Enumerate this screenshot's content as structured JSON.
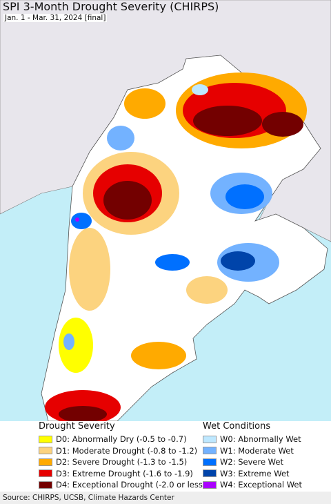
{
  "header": {
    "title": "SPI 3-Month Drought Severity (CHIRPS)",
    "subtitle": "Jan. 1 - Mar. 31, 2024 [final]"
  },
  "legend": {
    "drought": {
      "title": "Drought Severity",
      "items": [
        {
          "label": "D0: Abnormally Dry (-0.5 to -0.7)",
          "color": "#ffff00"
        },
        {
          "label": "D1: Moderate Drought (-0.8 to -1.2)",
          "color": "#fcd37f"
        },
        {
          "label": "D2: Severe Drought (-1.3 to -1.5)",
          "color": "#ffaa00"
        },
        {
          "label": "D3: Extreme Drought (-1.6 to -1.9)",
          "color": "#e60000"
        },
        {
          "label": "D4: Exceptional Drought (-2.0 or less)",
          "color": "#730000"
        }
      ]
    },
    "wet": {
      "title": "Wet Conditions",
      "items": [
        {
          "label": "W0: Abnormally Wet",
          "color": "#bee8ff"
        },
        {
          "label": "W1: Moderate Wet",
          "color": "#73b2ff"
        },
        {
          "label": "W2: Severe Wet",
          "color": "#0070ff"
        },
        {
          "label": "W3: Extreme Wet",
          "color": "#0044aa"
        },
        {
          "label": "W4: Exceptional Wet",
          "color": "#aa00ff"
        }
      ]
    }
  },
  "source": "Source: CHIRPS, UCSB, Climate Hazards Center"
}
